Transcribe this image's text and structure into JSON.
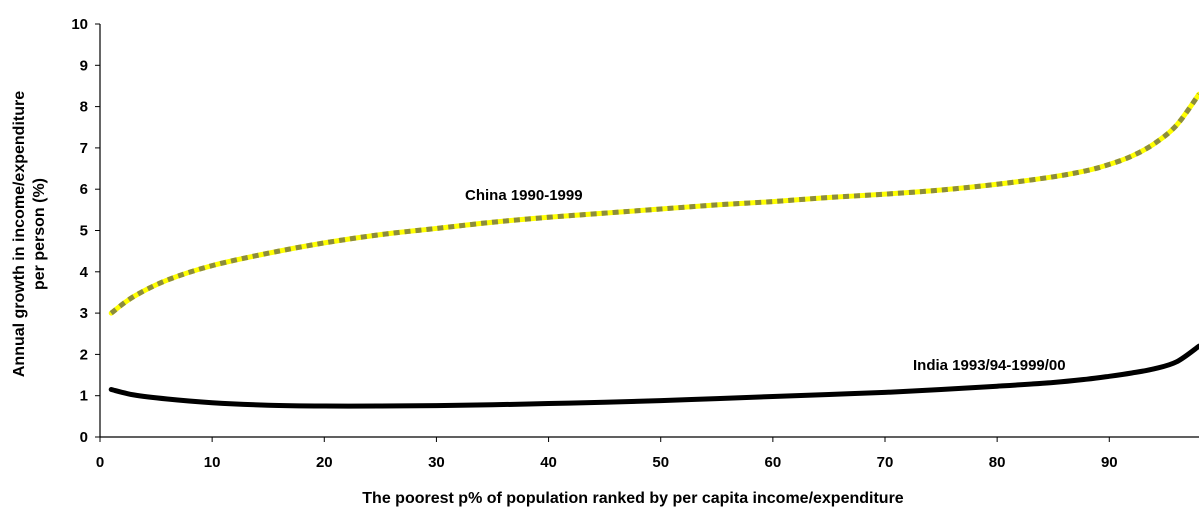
{
  "chart_data": {
    "type": "line",
    "title": "",
    "xlabel": "The poorest p% of population ranked by per capita income/expenditure",
    "ylabel_lines": [
      "Annual growth in income/expenditure",
      "per person (%)"
    ],
    "xlim": [
      0,
      98
    ],
    "ylim": [
      0,
      10
    ],
    "x_ticks": [
      0,
      10,
      20,
      30,
      40,
      50,
      60,
      70,
      80,
      90
    ],
    "y_ticks": [
      0,
      1,
      2,
      3,
      4,
      5,
      6,
      7,
      8,
      9,
      10
    ],
    "grid": false,
    "legend": "none",
    "series": [
      {
        "name": "China 1990-1999",
        "color": "#ffff00",
        "dash_color": "#8c8c3c",
        "x": [
          1,
          3,
          6,
          10,
          15,
          20,
          25,
          30,
          35,
          40,
          45,
          50,
          55,
          60,
          65,
          70,
          75,
          80,
          85,
          88,
          90,
          92,
          94,
          96,
          98
        ],
        "y": [
          3.0,
          3.4,
          3.8,
          4.15,
          4.45,
          4.7,
          4.9,
          5.05,
          5.2,
          5.32,
          5.42,
          5.52,
          5.62,
          5.7,
          5.8,
          5.88,
          5.98,
          6.12,
          6.3,
          6.45,
          6.6,
          6.8,
          7.1,
          7.55,
          8.3
        ]
      },
      {
        "name": "India 1993/94-1999/00",
        "color": "#000000",
        "x": [
          1,
          3,
          6,
          10,
          15,
          20,
          25,
          30,
          35,
          40,
          45,
          50,
          55,
          60,
          65,
          70,
          75,
          80,
          85,
          88,
          90,
          92,
          94,
          96,
          98
        ],
        "y": [
          1.15,
          1.02,
          0.92,
          0.83,
          0.77,
          0.75,
          0.75,
          0.76,
          0.78,
          0.81,
          0.84,
          0.88,
          0.93,
          0.98,
          1.03,
          1.08,
          1.15,
          1.23,
          1.32,
          1.4,
          1.47,
          1.55,
          1.65,
          1.82,
          2.2
        ]
      }
    ]
  }
}
